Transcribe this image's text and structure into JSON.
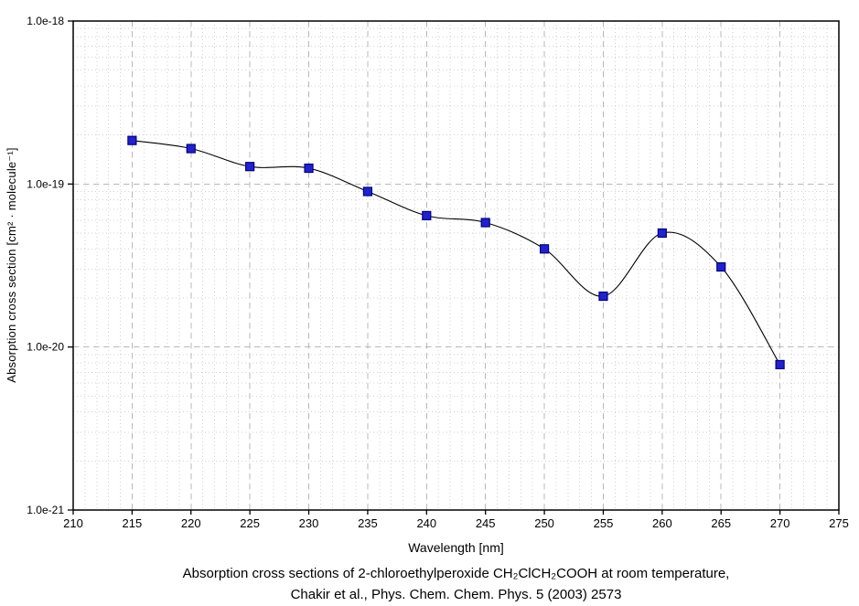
{
  "caption": {
    "line1": "Absorption cross sections of 2-chloroethylperoxide CH₂ClCH₂COOH at room temperature,",
    "line2": "Chakir et al., Phys. Chem. Chem. Phys. 5 (2003) 2573"
  },
  "chart_data": {
    "type": "line",
    "title": "",
    "xlabel": "Wavelength [nm]",
    "ylabel": "Absorption cross section [cm² · molecule⁻¹]",
    "xlim": [
      210,
      275
    ],
    "ylim": [
      1e-21,
      1e-18
    ],
    "yscale": "log",
    "grid": "major-dashed-plus-minor-dotted",
    "legend": "none",
    "marker": "filled-square",
    "x": [
      215,
      220,
      225,
      230,
      235,
      240,
      245,
      250,
      255,
      260,
      265,
      270
    ],
    "series": [
      {
        "name": "CH₂ClCH₂COOH absorption cross section",
        "values": [
          1.85e-19,
          1.65e-19,
          1.28e-19,
          1.25e-19,
          9e-20,
          6.4e-20,
          5.8e-20,
          4e-20,
          2.05e-20,
          5e-20,
          3.1e-20,
          7.8e-21
        ]
      }
    ],
    "x_tick_values": [
      210,
      215,
      220,
      225,
      230,
      235,
      240,
      245,
      250,
      255,
      260,
      265,
      270,
      275
    ],
    "x_tick_labels": [
      "210",
      "215",
      "220",
      "225",
      "230",
      "235",
      "240",
      "245",
      "250",
      "255",
      "260",
      "265",
      "270",
      "275"
    ],
    "y_tick_values": [
      1e-18,
      1e-19,
      1e-20,
      1e-21
    ],
    "y_tick_labels": [
      "1.0e-18",
      "1.0e-19",
      "1.0e-20",
      "1.0e-21"
    ],
    "colors": {
      "line": "#000000",
      "marker_fill": "#2222cc",
      "marker_edge": "#000080",
      "frame": "#000000",
      "grid_major": "#b8b8b8",
      "grid_minor": "#d2d2d2",
      "text": "#000000"
    }
  }
}
